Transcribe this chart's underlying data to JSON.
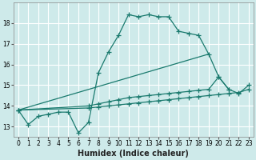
{
  "xlabel": "Humidex (Indice chaleur)",
  "bg_color": "#ceeaea",
  "grid_color": "#ffffff",
  "line_color": "#1a7a6e",
  "xlim": [
    -0.5,
    23.5
  ],
  "ylim": [
    12.5,
    19.0
  ],
  "yticks": [
    13,
    14,
    15,
    16,
    17,
    18
  ],
  "xticks": [
    0,
    1,
    2,
    3,
    4,
    5,
    6,
    7,
    8,
    9,
    10,
    11,
    12,
    13,
    14,
    15,
    16,
    17,
    18,
    19,
    20,
    21,
    22,
    23
  ],
  "main_curve": {
    "x": [
      0,
      1,
      2,
      3,
      4,
      5,
      6,
      7,
      8,
      9,
      10,
      11,
      12,
      13,
      14,
      15,
      16,
      17,
      18,
      19,
      20,
      21
    ],
    "y": [
      13.8,
      13.1,
      13.5,
      13.6,
      13.7,
      13.7,
      12.7,
      13.2,
      15.6,
      16.6,
      17.4,
      18.4,
      18.3,
      18.4,
      18.3,
      18.3,
      17.6,
      17.5,
      17.4,
      16.5,
      15.4,
      14.8
    ]
  },
  "line1": {
    "x": [
      0,
      19
    ],
    "y": [
      13.8,
      16.5
    ]
  },
  "line2_x": [
    0,
    7,
    8,
    9,
    10,
    11,
    12,
    13,
    14,
    15,
    16,
    17,
    18,
    19,
    20,
    21,
    22,
    23
  ],
  "line2_y": [
    13.8,
    14.0,
    14.1,
    14.2,
    14.3,
    14.4,
    14.45,
    14.5,
    14.55,
    14.6,
    14.65,
    14.7,
    14.75,
    14.8,
    15.4,
    14.8,
    14.6,
    15.0
  ],
  "line3_x": [
    0,
    7,
    8,
    9,
    10,
    11,
    12,
    13,
    14,
    15,
    16,
    17,
    18,
    19,
    20,
    21,
    22,
    23
  ],
  "line3_y": [
    13.8,
    13.9,
    13.95,
    14.0,
    14.05,
    14.1,
    14.15,
    14.2,
    14.25,
    14.3,
    14.35,
    14.4,
    14.45,
    14.5,
    14.55,
    14.6,
    14.65,
    14.8
  ]
}
